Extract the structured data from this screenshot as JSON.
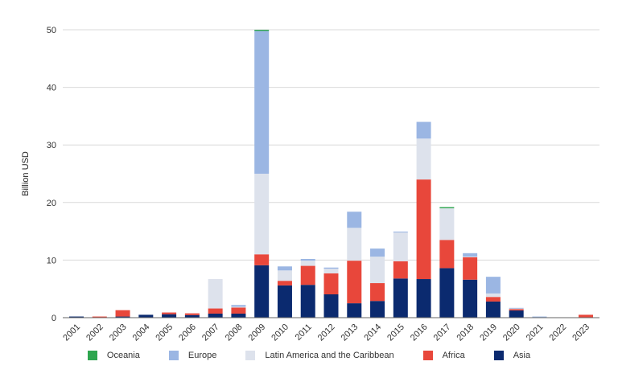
{
  "chart_data": {
    "type": "bar",
    "stacked": true,
    "title": "",
    "xlabel": "",
    "ylabel": "Billion USD",
    "ylim": [
      0,
      50
    ],
    "yticks": [
      0,
      10,
      20,
      30,
      40,
      50
    ],
    "grid": true,
    "legend_position": "bottom",
    "categories": [
      "2001",
      "2002",
      "2003",
      "2004",
      "2005",
      "2006",
      "2007",
      "2008",
      "2009",
      "2010",
      "2011",
      "2012",
      "2013",
      "2014",
      "2015",
      "2016",
      "2017",
      "2018",
      "2019",
      "2020",
      "2021",
      "2022",
      "2023"
    ],
    "series": [
      {
        "name": "Asia",
        "color": "#0b2a6f",
        "values": [
          0.2,
          0,
          0.2,
          0.5,
          0.6,
          0.45,
          0.7,
          0.7,
          9.1,
          5.6,
          5.7,
          4.05,
          2.5,
          2.9,
          6.8,
          6.7,
          8.6,
          6.6,
          2.8,
          1.25,
          0,
          0,
          0
        ]
      },
      {
        "name": "Africa",
        "color": "#e8473b",
        "values": [
          0,
          0.2,
          1.1,
          0,
          0.3,
          0.3,
          0.9,
          1.05,
          1.9,
          0.8,
          3.3,
          3.65,
          7.4,
          3.1,
          3.0,
          17.3,
          4.9,
          3.9,
          0.8,
          0.25,
          0,
          0,
          0.5
        ]
      },
      {
        "name": "Latin America and the Caribbean",
        "color": "#dde2ec",
        "values": [
          0,
          0,
          0,
          0,
          0,
          0,
          5.1,
          0.15,
          14.0,
          1.8,
          0.9,
          0.8,
          5.7,
          4.6,
          5.0,
          7.1,
          5.5,
          0.1,
          0.6,
          0.1,
          0,
          0,
          0
        ]
      },
      {
        "name": "Europe",
        "color": "#9bb6e3",
        "values": [
          0,
          0,
          0,
          0,
          0,
          0,
          0,
          0.3,
          24.8,
          0.7,
          0.3,
          0.2,
          2.8,
          1.4,
          0.15,
          2.9,
          0,
          0.6,
          2.9,
          0.1,
          0.2,
          0,
          0
        ]
      },
      {
        "name": "Oceania",
        "color": "#2ea64f",
        "values": [
          0,
          0,
          0,
          0,
          0,
          0,
          0,
          0,
          0.2,
          0,
          0,
          0,
          0,
          0,
          0,
          0,
          0.2,
          0,
          0,
          0,
          0,
          0,
          0
        ]
      }
    ],
    "legend_order": [
      "Oceania",
      "Europe",
      "Latin America and the Caribbean",
      "Africa",
      "Asia"
    ]
  }
}
